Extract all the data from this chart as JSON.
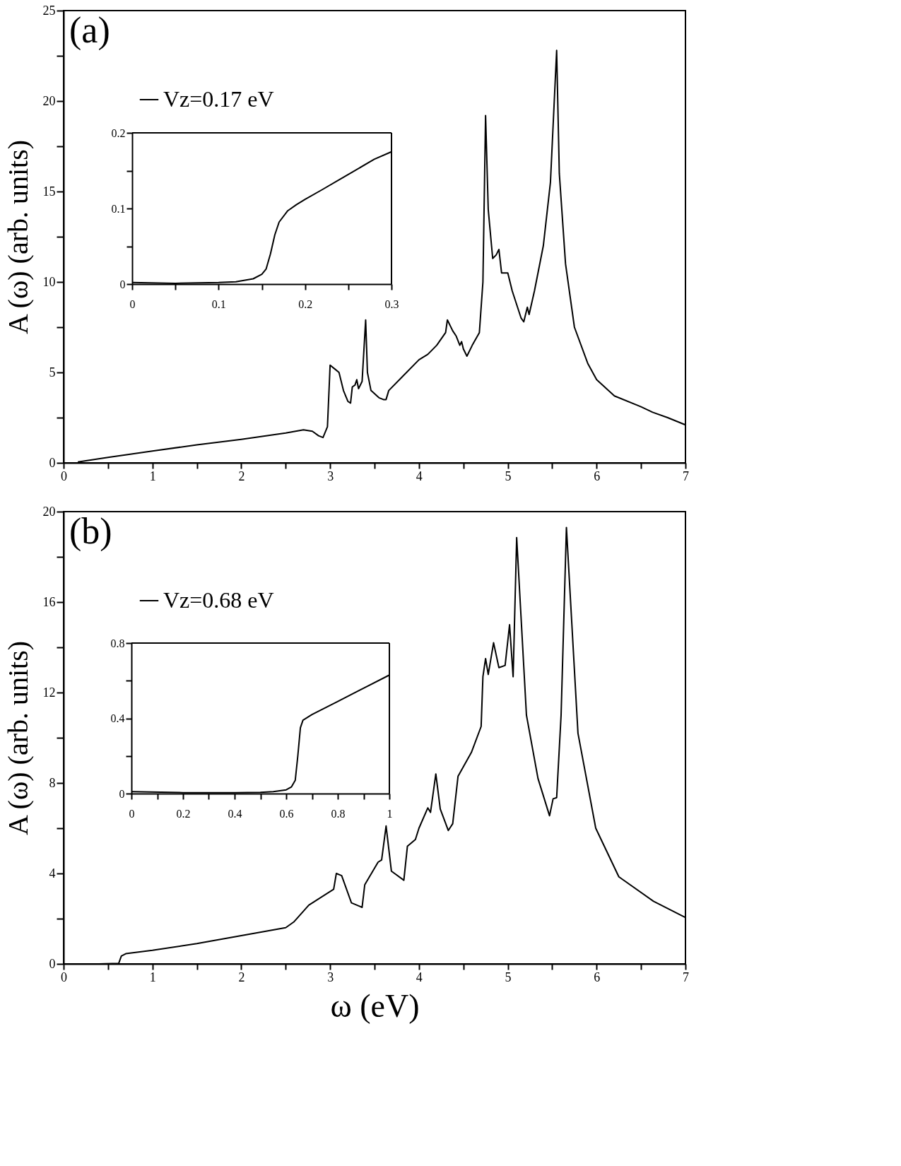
{
  "chart_data": [
    {
      "type": "line",
      "ylabel": "A (ω) (arb. units)",
      "annotations": [
        "(a)"
      ],
      "legend": "top left",
      "xlim": [
        0,
        7
      ],
      "ylim": [
        0,
        25
      ],
      "xticks": [
        0,
        {
          "value": 0.5,
          "label": null
        },
        1,
        {
          "value": 1.5,
          "label": null
        },
        2,
        {
          "value": 2.5,
          "label": null
        },
        3,
        {
          "value": 3.5,
          "label": null
        },
        4,
        {
          "value": 4.5,
          "label": null
        },
        5,
        {
          "value": 5.5,
          "label": null
        },
        6,
        {
          "value": 6.5,
          "label": null
        },
        7
      ],
      "yticks": [
        0,
        {
          "value": 2.5,
          "label": null
        },
        5,
        {
          "value": 7.5,
          "label": null
        },
        10,
        {
          "value": 12.5,
          "label": null
        },
        15,
        {
          "value": 17.5,
          "label": null
        },
        20,
        {
          "value": 22.5,
          "label": null
        },
        25
      ],
      "series": [
        {
          "name": "Vz=0.17 eV",
          "color": "#000000",
          "x": [
            0.16,
            0.5,
            1,
            1.5,
            2,
            2.5,
            2.7,
            2.8,
            2.87,
            2.92,
            2.97,
            3.0,
            3.05,
            3.1,
            3.15,
            3.2,
            3.23,
            3.25,
            3.28,
            3.3,
            3.32,
            3.36,
            3.4,
            3.42,
            3.46,
            3.55,
            3.6,
            3.63,
            3.66,
            3.8,
            4.0,
            4.1,
            4.2,
            4.3,
            4.32,
            4.38,
            4.42,
            4.46,
            4.48,
            4.5,
            4.54,
            4.6,
            4.68,
            4.72,
            4.75,
            4.78,
            4.83,
            4.87,
            4.9,
            4.93,
            5.0,
            5.05,
            5.15,
            5.18,
            5.22,
            5.24,
            5.3,
            5.4,
            5.48,
            5.55,
            5.58,
            5.65,
            5.75,
            5.9,
            6.0,
            6.2,
            6.5,
            6.63,
            6.8,
            7.0
          ],
          "values": [
            0.05,
            0.3,
            0.65,
            1.0,
            1.3,
            1.65,
            1.83,
            1.75,
            1.5,
            1.4,
            2.0,
            5.4,
            5.2,
            5.0,
            4.0,
            3.4,
            3.3,
            4.2,
            4.3,
            4.6,
            4.1,
            4.5,
            7.9,
            5.0,
            4.0,
            3.6,
            3.5,
            3.5,
            4.0,
            4.7,
            5.7,
            6.0,
            6.5,
            7.2,
            7.9,
            7.3,
            7.0,
            6.5,
            6.7,
            6.3,
            5.9,
            6.5,
            7.2,
            10,
            19.2,
            14,
            11.3,
            11.5,
            11.8,
            10.5,
            10.5,
            9.5,
            8.0,
            7.8,
            8.6,
            8.2,
            9.5,
            12,
            15.5,
            22.8,
            16,
            11,
            7.5,
            5.5,
            4.6,
            3.7,
            3.1,
            2.8,
            2.5,
            2.1
          ]
        }
      ]
    },
    {
      "type": "line",
      "xlim": [
        0,
        0.3
      ],
      "ylim": [
        0,
        0.2
      ],
      "xticks": [
        0,
        {
          "value": 0.05,
          "label": null
        },
        0.1,
        {
          "value": 0.15,
          "label": null
        },
        0.2,
        {
          "value": 0.25,
          "label": null
        },
        0.3
      ],
      "yticks": [
        0,
        {
          "value": 0.05,
          "label": null
        },
        0.1,
        {
          "value": 0.15,
          "label": null
        },
        0.2
      ],
      "series": [
        {
          "color": "#000000",
          "x": [
            0,
            0.05,
            0.1,
            0.12,
            0.14,
            0.15,
            0.155,
            0.16,
            0.165,
            0.17,
            0.18,
            0.19,
            0.2,
            0.22,
            0.25,
            0.28,
            0.3
          ],
          "values": [
            0.002,
            0.001,
            0.002,
            0.003,
            0.007,
            0.013,
            0.02,
            0.04,
            0.065,
            0.082,
            0.097,
            0.105,
            0.112,
            0.125,
            0.145,
            0.165,
            0.175
          ]
        }
      ]
    },
    {
      "type": "line",
      "xlabel": "ω (eV)",
      "ylabel": "A (ω) (arb. units)",
      "annotations": [
        "(b)"
      ],
      "legend": "top left",
      "xlim": [
        0,
        7
      ],
      "ylim": [
        0,
        20
      ],
      "xticks": [
        0,
        {
          "value": 0.5,
          "label": null
        },
        1,
        {
          "value": 1.5,
          "label": null
        },
        2,
        {
          "value": 2.5,
          "label": null
        },
        3,
        {
          "value": 3.5,
          "label": null
        },
        4,
        {
          "value": 4.5,
          "label": null
        },
        5,
        {
          "value": 5.5,
          "label": null
        },
        6,
        {
          "value": 6.5,
          "label": null
        },
        7
      ],
      "yticks": [
        0,
        {
          "value": 2,
          "label": null
        },
        4,
        {
          "value": 6,
          "label": null
        },
        8,
        {
          "value": 10,
          "label": null
        },
        12,
        {
          "value": 14,
          "label": null
        },
        16,
        {
          "value": 18,
          "label": null
        },
        20
      ],
      "series": [
        {
          "name": "Vz=0.68 eV",
          "color": "#000000",
          "x": [
            0.4,
            0.62,
            0.65,
            0.7,
            1,
            1.5,
            2,
            2.5,
            2.59,
            2.76,
            3.04,
            3.07,
            3.13,
            3.24,
            3.33,
            3.36,
            3.39,
            3.54,
            3.58,
            3.63,
            3.69,
            3.83,
            3.87,
            3.96,
            4.0,
            4.1,
            4.13,
            4.19,
            4.24,
            4.33,
            4.38,
            4.44,
            4.59,
            4.7,
            4.72,
            4.75,
            4.78,
            4.84,
            4.9,
            4.97,
            5.02,
            5.06,
            5.1,
            5.21,
            5.34,
            5.47,
            5.51,
            5.55,
            5.6,
            5.66,
            5.79,
            5.99,
            6.25,
            6.64,
            7.0
          ],
          "values": [
            0,
            0.02,
            0.35,
            0.45,
            0.6,
            0.9,
            1.25,
            1.6,
            1.85,
            2.6,
            3.3,
            4.0,
            3.9,
            2.7,
            2.55,
            2.5,
            3.5,
            4.5,
            4.6,
            6.1,
            4.1,
            3.7,
            5.2,
            5.5,
            6.0,
            6.9,
            6.7,
            8.4,
            6.85,
            5.9,
            6.2,
            8.3,
            9.35,
            10.5,
            12.7,
            13.5,
            12.8,
            14.2,
            13.1,
            13.2,
            15.0,
            12.7,
            18.85,
            11.0,
            8.2,
            6.55,
            7.3,
            7.35,
            11.0,
            19.3,
            10.2,
            6.0,
            3.85,
            2.77,
            2.05
          ]
        }
      ]
    },
    {
      "type": "line",
      "xlim": [
        0,
        1
      ],
      "ylim": [
        0,
        0.8
      ],
      "xticks": [
        0,
        {
          "value": 0.1,
          "label": null
        },
        0.2,
        {
          "value": 0.3,
          "label": null
        },
        0.4,
        {
          "value": 0.5,
          "label": null
        },
        0.6,
        {
          "value": 0.7,
          "label": null
        },
        0.8,
        {
          "value": 0.9,
          "label": null
        },
        1
      ],
      "yticks": [
        0,
        {
          "value": 0.2,
          "label": null
        },
        0.4,
        {
          "value": 0.6,
          "label": null
        },
        0.8
      ],
      "series": [
        {
          "color": "#000000",
          "x": [
            0,
            0.2,
            0.4,
            0.5,
            0.55,
            0.6,
            0.62,
            0.635,
            0.645,
            0.655,
            0.665,
            0.7,
            0.8,
            0.9,
            1
          ],
          "values": [
            0.01,
            0.005,
            0.005,
            0.007,
            0.01,
            0.02,
            0.035,
            0.07,
            0.2,
            0.35,
            0.39,
            0.42,
            0.49,
            0.56,
            0.63
          ]
        }
      ]
    }
  ]
}
